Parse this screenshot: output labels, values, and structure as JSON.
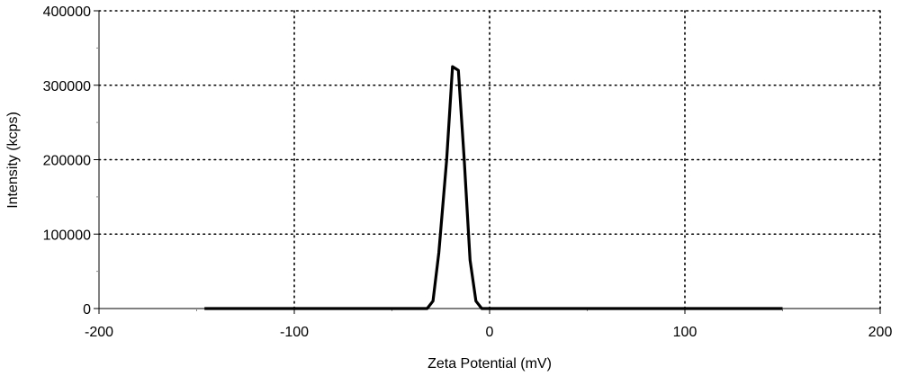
{
  "chart_data": {
    "type": "line",
    "title": "",
    "xlabel": "Zeta Potential (mV)",
    "ylabel": "Intensity (kcps)",
    "xlim": [
      -200,
      200
    ],
    "ylim": [
      0,
      400000
    ],
    "x_ticks": [
      -200,
      -100,
      0,
      100,
      200
    ],
    "x_tick_labels": [
      "-200",
      "-100",
      "0",
      "100",
      "200"
    ],
    "y_ticks": [
      0,
      100000,
      200000,
      300000,
      400000
    ],
    "y_tick_labels": [
      "0",
      "100000",
      "200000",
      "300000",
      "400000"
    ],
    "x_minor_ticks": [
      -150,
      -50,
      50,
      150
    ],
    "y_minor_ticks": [
      50000,
      150000,
      250000,
      350000
    ],
    "grid": true,
    "grid_style": "dotted",
    "legend": "none",
    "series": [
      {
        "color": "#000000",
        "x": [
          -146,
          -32,
          -29,
          -26,
          -22,
          -19,
          -16,
          -13,
          -10,
          -7,
          -4,
          -1,
          150
        ],
        "y": [
          0,
          0,
          10000,
          75000,
          200000,
          325000,
          320000,
          200000,
          65000,
          10000,
          0,
          0,
          0
        ]
      }
    ]
  }
}
